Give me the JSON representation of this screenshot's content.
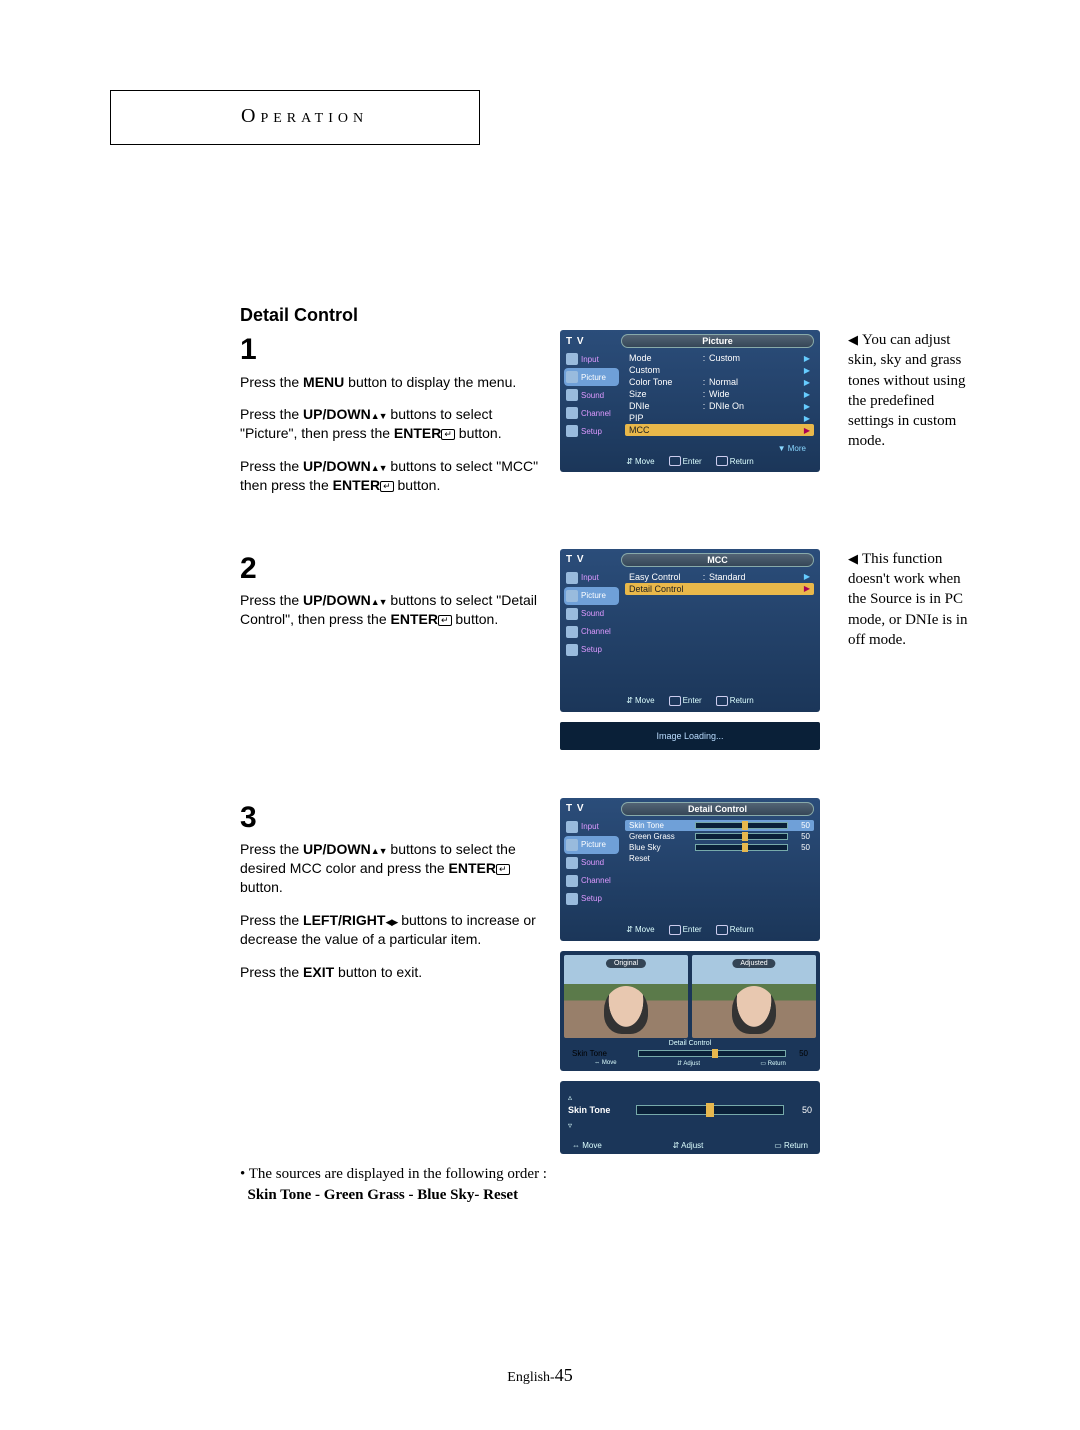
{
  "header": {
    "operation": "Operation"
  },
  "section_title": "Detail Control",
  "steps": {
    "s1": {
      "num": "1",
      "p1a": "Press the ",
      "p1b": "MENU",
      "p1c": " button to display the menu.",
      "p2a": "Press the ",
      "p2b": "UP/DOWN",
      "p2c": " buttons to select \"Picture\", then press the ",
      "p2d": "ENTER",
      "p2e": " button.",
      "p3a": "Press the ",
      "p3b": "UP/DOWN",
      "p3c": " buttons to select \"MCC\" then press the ",
      "p3d": "ENTER",
      "p3e": " button."
    },
    "s2": {
      "num": "2",
      "p1a": "Press the ",
      "p1b": "UP/DOWN",
      "p1c": " buttons to select \"Detail Control\", then press the ",
      "p1d": "ENTER",
      "p1e": " button."
    },
    "s3": {
      "num": "3",
      "p1a": "Press the ",
      "p1b": "UP/DOWN",
      "p1c": " buttons to select the desired MCC color and press the ",
      "p1d": "ENTER",
      "p1e": " button.",
      "p2a": "Press the ",
      "p2b": "LEFT/RIGHT",
      "p2c": " buttons to increase or decrease the value of a particular item.",
      "p3a": "Press the ",
      "p3b": "EXIT",
      "p3c": " button to exit."
    }
  },
  "notes": {
    "n1": "You can adjust skin, sky and grass tones without using the predefined settings in custom mode.",
    "n2": "This function doesn't work when the Source is in PC mode, or DNIe is in off mode."
  },
  "osd": {
    "tv": "T V",
    "side": {
      "input": "Input",
      "picture": "Picture",
      "sound": "Sound",
      "channel": "Channel",
      "setup": "Setup"
    },
    "footer": {
      "move": "Move",
      "enter": "Enter",
      "return": "Return",
      "adjust": "Adjust"
    },
    "more": "More",
    "picture": {
      "title": "Picture",
      "rows": [
        {
          "k": "Mode",
          "v": "Custom"
        },
        {
          "k": "Custom",
          "v": ""
        },
        {
          "k": "Color Tone",
          "v": "Normal"
        },
        {
          "k": "Size",
          "v": "Wide"
        },
        {
          "k": "DNIe",
          "v": "DNIe On"
        },
        {
          "k": "PIP",
          "v": ""
        },
        {
          "k": "MCC",
          "v": ""
        }
      ],
      "sel_index": 6
    },
    "mcc": {
      "title": "MCC",
      "rows": [
        {
          "k": "Easy Control",
          "v": "Standard"
        },
        {
          "k": "Detail Control",
          "v": ""
        }
      ],
      "sel_index": 1,
      "loading": "Image Loading..."
    },
    "detail": {
      "title": "Detail Control",
      "rows": [
        {
          "k": "Skin Tone",
          "v": 50
        },
        {
          "k": "Green Grass",
          "v": 50
        },
        {
          "k": "Blue Sky",
          "v": 50
        },
        {
          "k": "Reset",
          "v": null
        }
      ],
      "sel_index": 0,
      "track_color": "#0a2038",
      "knob_color": "#e7b84e"
    },
    "compare": {
      "original": "Original",
      "adjusted": "Adjusted",
      "label": "Detail Control",
      "row_label": "Skin Tone",
      "row_val": 50,
      "f1": "Move",
      "f2": "Adjust",
      "f3": "Return"
    },
    "slider": {
      "label": "Skin Tone",
      "value": 50,
      "move": "Move",
      "adjust": "Adjust",
      "return": "Return"
    }
  },
  "sources": {
    "line": "The sources are displayed in the following order :",
    "order": "Skin Tone - Green Grass - Blue Sky- Reset"
  },
  "footer": {
    "page_prefix": "English-",
    "page_num": "45"
  },
  "colors": {
    "osd_bg_top": "#2b4d7a",
    "osd_bg_bot": "#1b3659",
    "sel_row": "#e9b84a",
    "sel_side": "#6fa0d8"
  }
}
